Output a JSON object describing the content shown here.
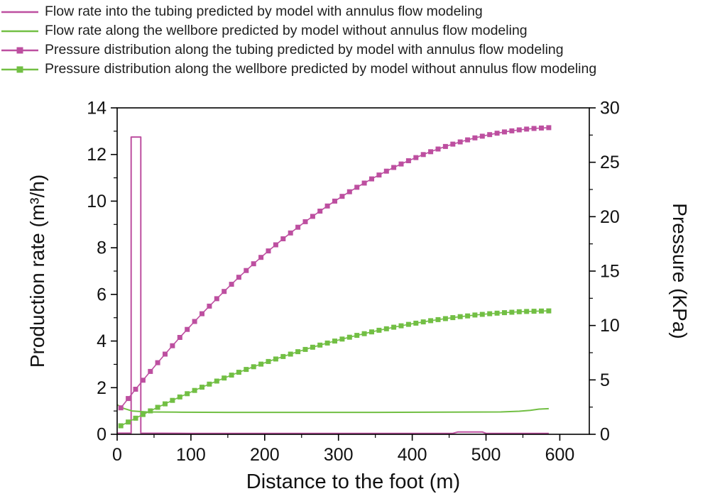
{
  "legend": {
    "items": [
      {
        "label": "Flow rate into the tubing predicted by model with annulus flow modeling",
        "color": "#bd4fa0",
        "marker": false
      },
      {
        "label": "Flow rate along the wellbore predicted by model without annulus flow modeling",
        "color": "#72bf44",
        "marker": false
      },
      {
        "label": "Pressure distribution along the tubing predicted by model with annulus flow modeling",
        "color": "#bd4fa0",
        "marker": true
      },
      {
        "label": "Pressure distribution along the wellbore predicted by model without annulus flow modeling",
        "color": "#72bf44",
        "marker": true
      }
    ]
  },
  "chart_data": {
    "type": "line",
    "title": "",
    "xlabel": "Distance to the foot (m)",
    "ylabel_left": "Production rate (m³/h)",
    "ylabel_right": "Pressure (KPa)",
    "xlim": [
      0,
      640
    ],
    "ylim_left": [
      0,
      14
    ],
    "ylim_right": [
      0,
      30
    ],
    "xticks": [
      0,
      100,
      200,
      300,
      400,
      500,
      600
    ],
    "xticks_minor": [
      50,
      150,
      250,
      350,
      450,
      550
    ],
    "yticks_left": [
      0,
      2,
      4,
      6,
      8,
      10,
      12,
      14
    ],
    "yticks_left_minor": [
      1,
      3,
      5,
      7,
      9,
      11,
      13
    ],
    "yticks_right": [
      0,
      5,
      10,
      15,
      20,
      25,
      30
    ],
    "yticks_right_minor": [
      2.5,
      7.5,
      12.5,
      17.5,
      22.5,
      27.5
    ],
    "axis_color": "#000000",
    "series": [
      {
        "name": "flow-rate-tubing-with-annulus",
        "axis": "left",
        "color": "#bd4fa0",
        "marker": "none",
        "x": [
          0,
          19,
          19,
          32,
          32,
          100,
          200,
          300,
          400,
          455,
          462,
          495,
          500,
          585
        ],
        "y": [
          0.05,
          0.05,
          12.75,
          12.75,
          0.05,
          0.04,
          0.04,
          0.04,
          0.04,
          0.04,
          0.1,
          0.1,
          0.04,
          0.04
        ]
      },
      {
        "name": "flow-rate-wellbore-without-annulus",
        "axis": "left",
        "color": "#72bf44",
        "marker": "none",
        "x": [
          0,
          8,
          20,
          40,
          80,
          150,
          250,
          350,
          450,
          520,
          545,
          560,
          572,
          585
        ],
        "y": [
          1.27,
          1.12,
          1.0,
          0.96,
          0.95,
          0.94,
          0.94,
          0.94,
          0.95,
          0.96,
          0.99,
          1.03,
          1.08,
          1.1
        ]
      },
      {
        "name": "pressure-tubing-with-annulus",
        "axis": "right",
        "color": "#bd4fa0",
        "marker": "square",
        "x": [
          5,
          15,
          25,
          35,
          45,
          55,
          65,
          75,
          85,
          95,
          105,
          115,
          125,
          135,
          145,
          155,
          165,
          175,
          185,
          195,
          205,
          215,
          225,
          235,
          245,
          255,
          265,
          275,
          285,
          295,
          305,
          315,
          325,
          335,
          345,
          355,
          365,
          375,
          385,
          395,
          405,
          415,
          425,
          435,
          445,
          455,
          465,
          475,
          485,
          495,
          505,
          515,
          525,
          535,
          545,
          555,
          565,
          575,
          585
        ],
        "y": [
          2.43,
          3.29,
          4.14,
          4.97,
          5.78,
          6.58,
          7.37,
          8.14,
          8.9,
          9.64,
          10.37,
          11.08,
          11.78,
          12.46,
          13.13,
          13.79,
          14.43,
          15.05,
          15.67,
          16.26,
          16.85,
          17.41,
          17.97,
          18.5,
          19.03,
          19.54,
          20.03,
          20.51,
          20.98,
          21.43,
          21.87,
          22.29,
          22.7,
          23.09,
          23.47,
          23.83,
          24.18,
          24.52,
          24.84,
          25.14,
          25.43,
          25.71,
          25.97,
          26.22,
          26.45,
          26.67,
          26.87,
          27.06,
          27.24,
          27.4,
          27.54,
          27.67,
          27.79,
          27.89,
          27.98,
          28.05,
          28.11,
          28.15,
          28.18
        ]
      },
      {
        "name": "pressure-wellbore-without-annulus",
        "axis": "right",
        "color": "#72bf44",
        "marker": "square",
        "x": [
          5,
          15,
          25,
          35,
          45,
          55,
          65,
          75,
          85,
          95,
          105,
          115,
          125,
          135,
          145,
          155,
          165,
          175,
          185,
          195,
          205,
          215,
          225,
          235,
          245,
          255,
          265,
          275,
          285,
          295,
          305,
          315,
          325,
          335,
          345,
          355,
          365,
          375,
          385,
          395,
          405,
          415,
          425,
          435,
          445,
          455,
          465,
          475,
          485,
          495,
          505,
          515,
          525,
          535,
          545,
          555,
          565,
          575,
          585
        ],
        "y": [
          0.78,
          1.13,
          1.48,
          1.82,
          2.15,
          2.48,
          2.8,
          3.12,
          3.43,
          3.73,
          4.03,
          4.33,
          4.61,
          4.89,
          5.17,
          5.44,
          5.7,
          5.96,
          6.21,
          6.45,
          6.69,
          6.92,
          7.15,
          7.37,
          7.59,
          7.8,
          8.0,
          8.2,
          8.39,
          8.57,
          8.75,
          8.92,
          9.09,
          9.25,
          9.41,
          9.56,
          9.7,
          9.84,
          9.97,
          10.1,
          10.21,
          10.33,
          10.44,
          10.54,
          10.63,
          10.72,
          10.81,
          10.88,
          10.96,
          11.02,
          11.08,
          11.13,
          11.18,
          11.22,
          11.26,
          11.29,
          11.31,
          11.33,
          11.34
        ]
      }
    ]
  }
}
